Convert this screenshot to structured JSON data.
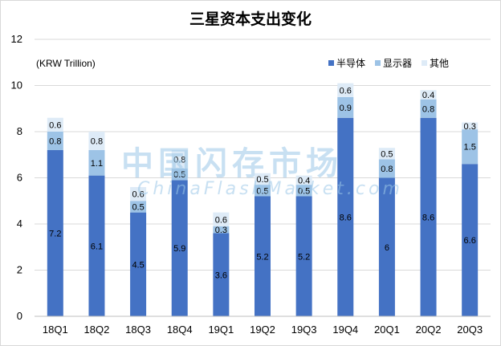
{
  "chart_data": {
    "type": "bar",
    "stacked": true,
    "title": "三星资本支出变化",
    "unit_note": "(KRW Trillion)",
    "categories": [
      "18Q1",
      "18Q2",
      "18Q3",
      "18Q4",
      "19Q1",
      "19Q2",
      "19Q3",
      "19Q4",
      "20Q1",
      "20Q2",
      "20Q3"
    ],
    "series": [
      {
        "name": "半导体",
        "color": "#4472c4",
        "values": [
          7.2,
          6.1,
          4.5,
          5.9,
          3.6,
          5.2,
          5.2,
          8.6,
          6,
          8.6,
          6.6
        ]
      },
      {
        "name": "显示器",
        "color": "#9dc3e6",
        "values": [
          0.8,
          1.1,
          0.5,
          0.5,
          0.3,
          0.5,
          0.5,
          0.9,
          0.8,
          0.8,
          1.5
        ]
      },
      {
        "name": "其他",
        "color": "#deebf7",
        "values": [
          0.6,
          0.8,
          0.6,
          0.8,
          0.6,
          0.5,
          0.4,
          0.6,
          0.5,
          0.4,
          0.3
        ]
      }
    ],
    "ylim": [
      0,
      12
    ],
    "yticks": [
      0,
      2,
      4,
      6,
      8,
      10,
      12
    ],
    "grid": true,
    "legend_position": "top-right"
  },
  "watermark": {
    "cn": "中国闪存市场",
    "en": "ChinaFlashMarket.com"
  }
}
